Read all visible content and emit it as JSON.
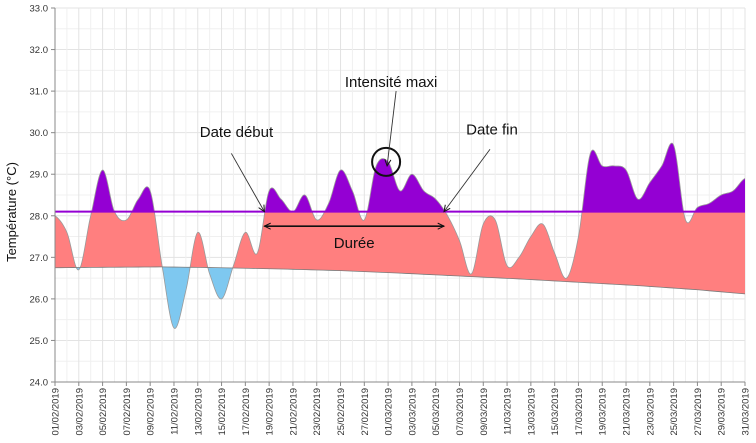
{
  "chart_data": {
    "type": "area",
    "title": "",
    "ylabel": "Température (°C)",
    "xlabel": "",
    "ylim": [
      24.0,
      33.0
    ],
    "yticks": [
      "24.0",
      "25.0",
      "26.0",
      "27.0",
      "28.0",
      "29.0",
      "30.0",
      "31.0",
      "32.0",
      "33.0"
    ],
    "x_start": "2019-02-01",
    "x_end": "2019-03-31",
    "xticks": [
      "01/02/2019",
      "03/02/2019",
      "05/02/2019",
      "07/02/2019",
      "09/02/2019",
      "11/02/2019",
      "13/02/2019",
      "15/02/2019",
      "17/02/2019",
      "19/02/2019",
      "21/02/2019",
      "23/02/2019",
      "25/02/2019",
      "27/02/2019",
      "01/03/2019",
      "03/03/2019",
      "05/03/2019",
      "07/03/2019",
      "09/03/2019",
      "11/03/2019",
      "13/03/2019",
      "15/03/2019",
      "17/03/2019",
      "19/03/2019",
      "21/03/2019",
      "23/03/2019",
      "25/03/2019",
      "27/03/2019",
      "29/03/2019",
      "31/03/2019"
    ],
    "grid": true,
    "threshold": 28.1,
    "series": [
      {
        "role": "temperature",
        "points": [
          [
            "2019-02-01",
            28.0
          ],
          [
            "2019-02-02",
            27.6
          ],
          [
            "2019-02-03",
            26.7
          ],
          [
            "2019-02-04",
            28.0
          ],
          [
            "2019-02-05",
            29.1
          ],
          [
            "2019-02-06",
            28.1
          ],
          [
            "2019-02-07",
            27.9
          ],
          [
            "2019-02-08",
            28.4
          ],
          [
            "2019-02-09",
            28.6
          ],
          [
            "2019-02-10",
            26.8
          ],
          [
            "2019-02-11",
            25.3
          ],
          [
            "2019-02-12",
            26.2
          ],
          [
            "2019-02-13",
            27.6
          ],
          [
            "2019-02-14",
            26.6
          ],
          [
            "2019-02-15",
            26.0
          ],
          [
            "2019-02-16",
            26.8
          ],
          [
            "2019-02-17",
            27.6
          ],
          [
            "2019-02-18",
            27.1
          ],
          [
            "2019-02-19",
            28.6
          ],
          [
            "2019-02-20",
            28.4
          ],
          [
            "2019-02-21",
            28.1
          ],
          [
            "2019-02-22",
            28.5
          ],
          [
            "2019-02-23",
            27.9
          ],
          [
            "2019-02-24",
            28.3
          ],
          [
            "2019-02-25",
            29.1
          ],
          [
            "2019-02-26",
            28.6
          ],
          [
            "2019-02-27",
            27.9
          ],
          [
            "2019-02-28",
            29.2
          ],
          [
            "2019-03-01",
            29.3
          ],
          [
            "2019-03-02",
            28.6
          ],
          [
            "2019-03-03",
            29.0
          ],
          [
            "2019-03-04",
            28.6
          ],
          [
            "2019-03-05",
            28.4
          ],
          [
            "2019-03-06",
            28.0
          ],
          [
            "2019-03-07",
            27.4
          ],
          [
            "2019-03-08",
            26.6
          ],
          [
            "2019-03-09",
            27.8
          ],
          [
            "2019-03-10",
            27.9
          ],
          [
            "2019-03-11",
            26.8
          ],
          [
            "2019-03-12",
            27.0
          ],
          [
            "2019-03-13",
            27.5
          ],
          [
            "2019-03-14",
            27.8
          ],
          [
            "2019-03-15",
            27.1
          ],
          [
            "2019-03-16",
            26.5
          ],
          [
            "2019-03-17",
            27.5
          ],
          [
            "2019-03-18",
            29.5
          ],
          [
            "2019-03-19",
            29.2
          ],
          [
            "2019-03-20",
            29.2
          ],
          [
            "2019-03-21",
            29.1
          ],
          [
            "2019-03-22",
            28.4
          ],
          [
            "2019-03-23",
            28.8
          ],
          [
            "2019-03-24",
            29.2
          ],
          [
            "2019-03-25",
            29.7
          ],
          [
            "2019-03-26",
            27.9
          ],
          [
            "2019-03-27",
            28.2
          ],
          [
            "2019-03-28",
            28.3
          ],
          [
            "2019-03-29",
            28.5
          ],
          [
            "2019-03-30",
            28.6
          ],
          [
            "2019-03-31",
            28.9
          ]
        ]
      },
      {
        "role": "baseline",
        "points": [
          [
            "2019-02-01",
            26.75
          ],
          [
            "2019-02-05",
            26.76
          ],
          [
            "2019-02-10",
            26.77
          ],
          [
            "2019-02-15",
            26.75
          ],
          [
            "2019-02-20",
            26.72
          ],
          [
            "2019-02-25",
            26.68
          ],
          [
            "2019-03-02",
            26.62
          ],
          [
            "2019-03-07",
            26.55
          ],
          [
            "2019-03-12",
            26.48
          ],
          [
            "2019-03-17",
            26.4
          ],
          [
            "2019-03-22",
            26.32
          ],
          [
            "2019-03-27",
            26.22
          ],
          [
            "2019-03-31",
            26.12
          ]
        ]
      }
    ],
    "colors": {
      "above_threshold": "#9400D3",
      "threshold_line": "#9400D3",
      "above_baseline": "#FF7F7F",
      "below_baseline": "#7EC8F0",
      "grid": "#e3e3e3",
      "axis": "#888888"
    },
    "annotations": {
      "peak": "Intensité maxi",
      "start": "Date début",
      "end": "Date fin",
      "duration": "Durée"
    }
  }
}
